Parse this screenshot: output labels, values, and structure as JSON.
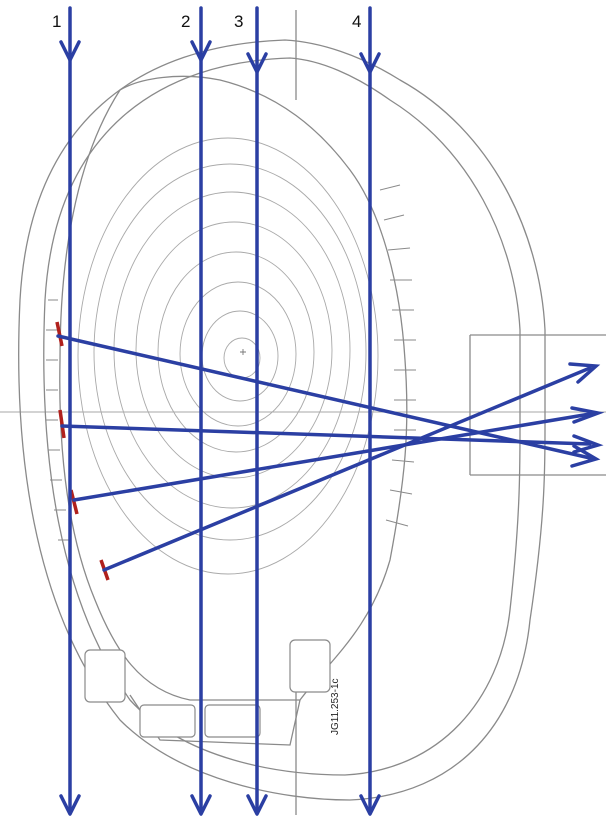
{
  "chords": [
    {
      "label": "1"
    },
    {
      "label": "2"
    },
    {
      "label": "3"
    },
    {
      "label": "4"
    }
  ],
  "figure_code": "JG11.253-1c",
  "colors": {
    "beam": "#2b3fa3",
    "tile_mark": "#b0201c",
    "structure": "#8a8a8a",
    "flux_surface": "#a9a9a9"
  },
  "horizontal_lines_of_sight": 4,
  "vertical_lines_of_sight": 4
}
